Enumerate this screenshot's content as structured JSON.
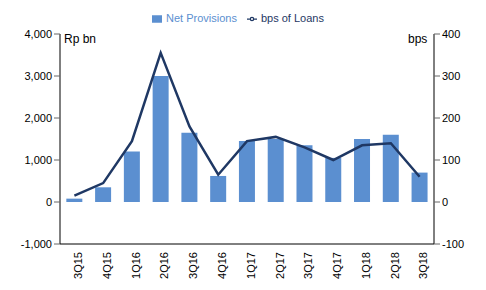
{
  "chart_data": {
    "type": "bar",
    "categories": [
      "3Q15",
      "4Q15",
      "1Q16",
      "2Q16",
      "3Q16",
      "4Q16",
      "1Q17",
      "2Q17",
      "3Q17",
      "4Q17",
      "1Q18",
      "2Q18",
      "3Q18"
    ],
    "y_label": "Rp bn",
    "y2_label": "bps",
    "ylim": [
      -1000,
      4000
    ],
    "yticks": [
      {
        "value": -1000,
        "label": "-1,000"
      },
      0,
      {
        "value": 1000,
        "label": "1,000"
      },
      {
        "value": 2000,
        "label": "2,000"
      },
      {
        "value": 3000,
        "label": "3,000"
      },
      {
        "value": 4000,
        "label": "4,000"
      }
    ],
    "y2lim": [
      -100,
      400
    ],
    "y2ticks": [
      -100,
      0,
      100,
      200,
      300,
      400
    ],
    "legend": "top",
    "grid": false,
    "series": [
      {
        "name": "Net Provisions",
        "type": "bar",
        "color": "#5b8fd0",
        "values": [
          80,
          350,
          1200,
          3000,
          1650,
          620,
          1450,
          1500,
          1350,
          1050,
          1500,
          1600,
          700
        ]
      },
      {
        "name": "bps of Loans",
        "type": "line",
        "axis": "y2",
        "color": "#1f3864",
        "values": [
          15,
          45,
          145,
          355,
          180,
          65,
          145,
          155,
          130,
          100,
          135,
          140,
          60
        ]
      }
    ]
  }
}
